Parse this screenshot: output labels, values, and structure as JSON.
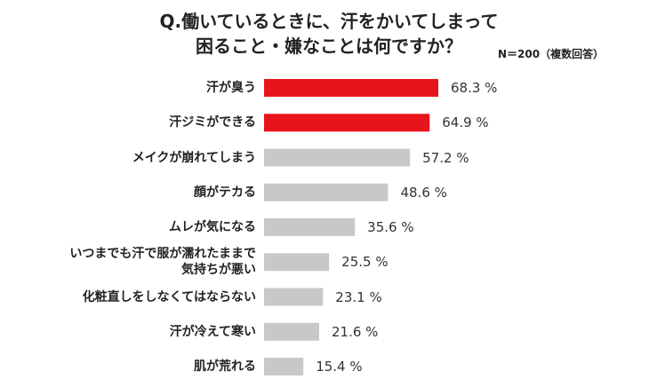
{
  "chart_data": {
    "type": "bar",
    "orientation": "horizontal",
    "title": [
      "Q.働いているときに、汗をかいてしまって",
      "困ること・嫌なことは何ですか？"
    ],
    "subtitle": "N＝200（複数回答）",
    "categories": [
      "汗が臭う",
      "汗ジミができる",
      "メイクが崩れてしまう",
      "顔がテカる",
      "ムレが気になる",
      "いつまでも汗で服が濡れたままで\n気持ちが悪い",
      "化粧直しをしなくてはならない",
      "汗が冷えて寒い",
      "肌が荒れる"
    ],
    "values": [
      68.3,
      64.9,
      57.2,
      48.6,
      35.6,
      25.5,
      23.1,
      21.6,
      15.4
    ],
    "value_labels": [
      "68.3 %",
      "64.9 %",
      "57.2 %",
      "48.6 %",
      "35.6 %",
      "25.5 %",
      "23.1 %",
      "21.6 %",
      "15.4 %"
    ],
    "colors": [
      "#e8141c",
      "#e8141c",
      "#c9c8c8",
      "#c9c8c8",
      "#c9c8c8",
      "#c9c8c8",
      "#c9c8c8",
      "#c9c8c8",
      "#c9c8c8"
    ]
  }
}
